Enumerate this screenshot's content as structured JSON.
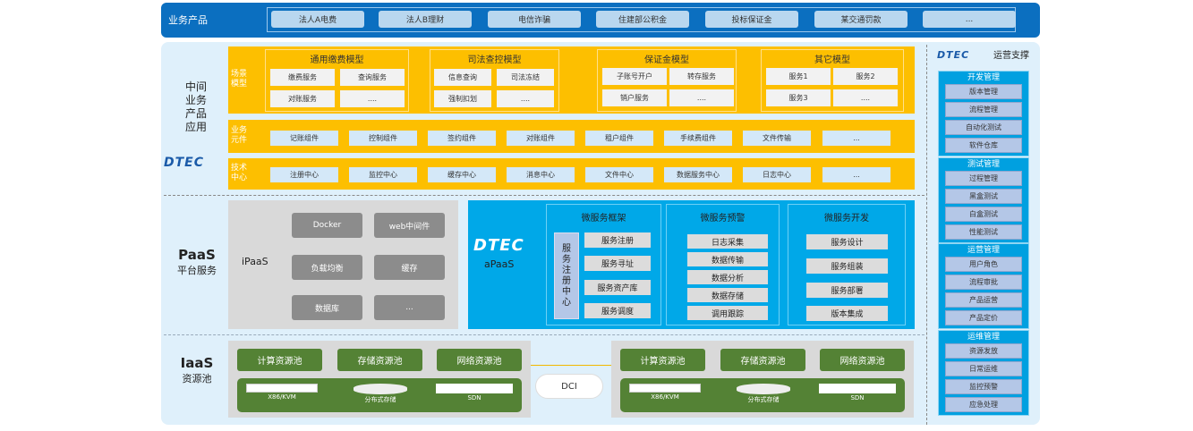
{
  "top": {
    "label": "业务产品",
    "products": [
      "法人A电费",
      "法人B理财",
      "电信诈骗",
      "住建部公积金",
      "投标保证金",
      "某交通罚款",
      "..."
    ]
  },
  "middle": {
    "label": "中间业务产品应用",
    "logo": "DTEC",
    "scene": {
      "label": "场景模型",
      "groups": [
        {
          "title": "通用缴费模型",
          "items": [
            "缴费服务",
            "查询服务",
            "对账服务",
            "...."
          ]
        },
        {
          "title": "司法查控模型",
          "items": [
            "信息查询",
            "司法冻结",
            "强制扣划",
            "...."
          ]
        },
        {
          "title": "保证金模型",
          "items": [
            "子账号开户",
            "转存服务",
            "销户服务",
            "...."
          ]
        },
        {
          "title": "其它模型",
          "items": [
            "服务1",
            "服务2",
            "服务3",
            "...."
          ]
        }
      ]
    },
    "components": {
      "label": "业务元件",
      "items": [
        "记账组件",
        "控制组件",
        "签约组件",
        "对账组件",
        "租户组件",
        "手续费组件",
        "文件传输",
        "..."
      ]
    },
    "tech": {
      "label": "技术中心",
      "items": [
        "注册中心",
        "监控中心",
        "缓存中心",
        "消息中心",
        "文件中心",
        "数据服务中心",
        "日志中心",
        "..."
      ]
    }
  },
  "paas": {
    "title": "PaaS",
    "subtitle": "平台服务",
    "ipaas": {
      "label": "iPaaS",
      "items": [
        "Docker",
        "web中间件",
        "负载均衡",
        "缓存",
        "数据库",
        "..."
      ]
    },
    "apaas": {
      "logo": "DTEC",
      "label": "aPaaS",
      "groups": [
        {
          "title": "微服务框架",
          "side": "服务注册中心",
          "items": [
            "服务注册",
            "服务寻址",
            "服务资产库",
            "服务调度"
          ]
        },
        {
          "title": "微服务预警",
          "items": [
            "日志采集",
            "数据传输",
            "数据分析",
            "数据存储",
            "调用跟踪"
          ]
        },
        {
          "title": "微服务开发",
          "items": [
            "服务设计",
            "服务组装",
            "服务部署",
            "版本集成"
          ]
        }
      ]
    }
  },
  "iaas": {
    "title": "IaaS",
    "subtitle": "资源池",
    "link": "DCI",
    "pools": [
      "计算资源池",
      "存储资源池",
      "网络资源池"
    ],
    "hardware": [
      "X86/KVM",
      "分布式存储",
      "SDN"
    ]
  },
  "ops": {
    "logo": "DTEC",
    "title": "运营支撑",
    "groups": [
      {
        "title": "开发管理",
        "items": [
          "版本管理",
          "流程管理",
          "自动化测试",
          "软件仓库"
        ]
      },
      {
        "title": "测试管理",
        "items": [
          "过程管理",
          "黑盒测试",
          "白盒测试",
          "性能测试"
        ]
      },
      {
        "title": "运营管理",
        "items": [
          "用户角色",
          "流程审批",
          "产品运营",
          "产品定价"
        ]
      },
      {
        "title": "运维管理",
        "items": [
          "资源发放",
          "日常运维",
          "监控预警",
          "应急处理"
        ]
      }
    ]
  },
  "colors": {
    "top": "#0b6fc0",
    "yellow": "#fdbf00",
    "apaas": "#00a8e8",
    "iaas_green": "#548235",
    "panel": "#dff0fb"
  }
}
